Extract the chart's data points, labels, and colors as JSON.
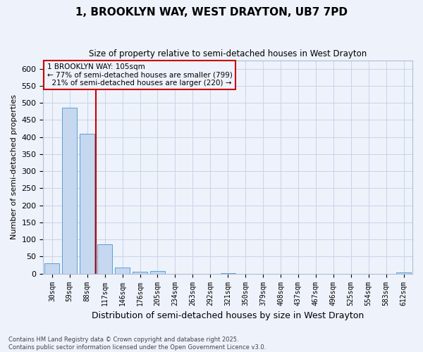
{
  "title": "1, BROOKLYN WAY, WEST DRAYTON, UB7 7PD",
  "subtitle": "Size of property relative to semi-detached houses in West Drayton",
  "xlabel": "Distribution of semi-detached houses by size in West Drayton",
  "ylabel": "Number of semi-detached properties",
  "bar_color": "#c5d8f0",
  "bar_edge_color": "#5a9fd4",
  "categories": [
    "30sqm",
    "59sqm",
    "88sqm",
    "117sqm",
    "146sqm",
    "176sqm",
    "205sqm",
    "234sqm",
    "263sqm",
    "292sqm",
    "321sqm",
    "350sqm",
    "379sqm",
    "408sqm",
    "437sqm",
    "467sqm",
    "496sqm",
    "525sqm",
    "554sqm",
    "583sqm",
    "612sqm"
  ],
  "values": [
    30,
    485,
    410,
    85,
    18,
    5,
    7,
    0,
    0,
    0,
    2,
    0,
    0,
    0,
    0,
    0,
    0,
    0,
    0,
    0,
    3
  ],
  "ylim": [
    0,
    625
  ],
  "yticks": [
    0,
    50,
    100,
    150,
    200,
    250,
    300,
    350,
    400,
    450,
    500,
    550,
    600
  ],
  "property_label": "1 BROOKLYN WAY: 105sqm",
  "pct_smaller": 77,
  "n_smaller": 799,
  "pct_larger": 21,
  "n_larger": 220,
  "vline_color": "#cc0000",
  "annotation_box_color": "#cc0000",
  "background_color": "#eef2fb",
  "grid_color": "#c8d4e8",
  "footnote": "Contains HM Land Registry data © Crown copyright and database right 2025.\nContains public sector information licensed under the Open Government Licence v3.0."
}
